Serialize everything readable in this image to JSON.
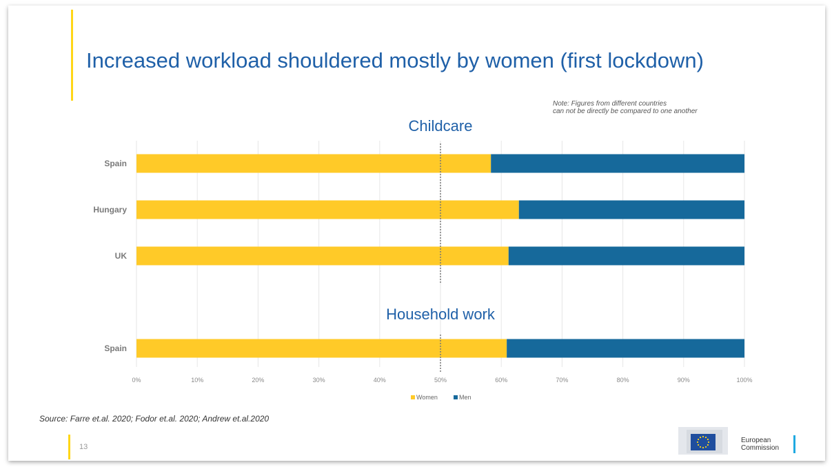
{
  "slide": {
    "title": "Increased workload shouldered mostly by women (first lockdown)",
    "note_line1": "Note: Figures from different countries",
    "note_line2": "can not be directly be compared to one another",
    "source": "Source: Farre et.al. 2020; Fodor et.al. 2020; Andrew et.al.2020",
    "page_number": "13",
    "logo_line1": "European",
    "logo_line2": "Commission"
  },
  "colors": {
    "women": "#ffca28",
    "men": "#16699b",
    "accent": "#ffd617",
    "title": "#1f60a8"
  },
  "chart_data": {
    "type": "bar",
    "orientation": "horizontal",
    "stacked": "percent",
    "sections": [
      {
        "label": "Childcare",
        "categories": [
          "Spain",
          "Hungary",
          "UK"
        ],
        "women": [
          58.3,
          62.9,
          61.2
        ],
        "men": [
          41.7,
          37.1,
          38.8
        ]
      },
      {
        "label": "Household work",
        "categories": [
          "Spain"
        ],
        "women": [
          60.9
        ],
        "men": [
          39.1
        ]
      }
    ],
    "series": [
      {
        "name": "Women",
        "color": "#ffca28"
      },
      {
        "name": "Men",
        "color": "#16699b"
      }
    ],
    "x_ticks": [
      "0%",
      "10%",
      "20%",
      "30%",
      "40%",
      "50%",
      "60%",
      "70%",
      "80%",
      "90%",
      "100%"
    ],
    "xlim": [
      0,
      100
    ],
    "reference_line": 50,
    "grid": true,
    "legend": "bottom"
  }
}
